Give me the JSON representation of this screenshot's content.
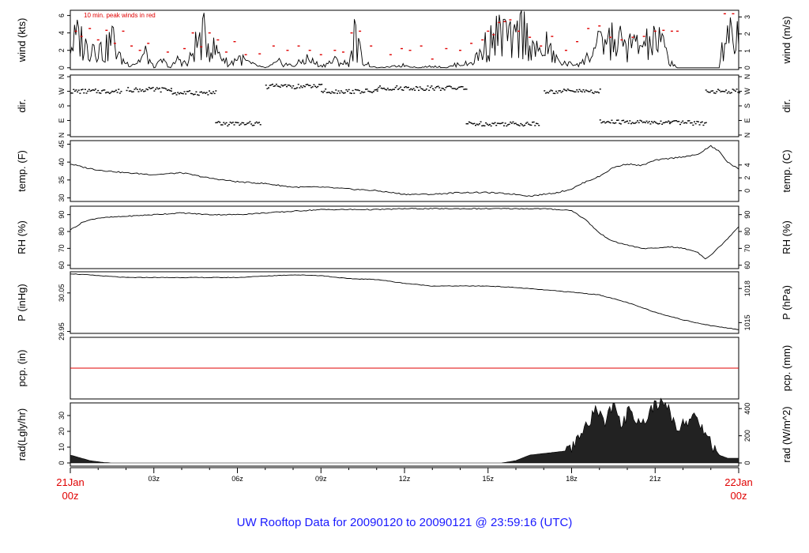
{
  "title": "UW Rooftop Data for 20090120  to  20090121 @ 23:59:16  (UTC)",
  "wind_note": "10 min. peak winds in red",
  "x_axis": {
    "range_hours": [
      0,
      24
    ],
    "major_ticks": [
      3,
      6,
      9,
      12,
      15,
      18,
      21
    ],
    "major_labels": [
      "03z",
      "06z",
      "09z",
      "12z",
      "15z",
      "18z",
      "21z"
    ],
    "start_label": [
      "21Jan",
      "00z"
    ],
    "end_label": [
      "22Jan",
      "00z"
    ]
  },
  "colors": {
    "line": "#000000",
    "peak": "#e00000",
    "title": "#1a1aff",
    "axis_end": "#e00000",
    "precip": "#e00000"
  },
  "chart_data": [
    {
      "type": "line",
      "panel": "wind",
      "ylabel": "wind (kts)",
      "ylabel_right": "wind (m/s)",
      "ylim": [
        -0.2,
        6.6
      ],
      "ticks": [
        0,
        2,
        4,
        6
      ],
      "tick_labels": [
        "0",
        "2",
        "4",
        "6"
      ],
      "right_ticks": [
        0,
        1,
        2,
        3
      ],
      "right_tick_labels": [
        "0",
        "1",
        "2",
        "3"
      ],
      "x": [
        0,
        0.3,
        0.6,
        0.9,
        1.2,
        1.5,
        1.8,
        2.1,
        2.4,
        2.7,
        3.0,
        3.3,
        3.6,
        3.9,
        4.2,
        4.5,
        4.8,
        5.1,
        5.4,
        5.7,
        6.0,
        6.5,
        7.0,
        7.5,
        8.0,
        8.5,
        9.0,
        9.5,
        10.0,
        10.2,
        10.5,
        10.8,
        11.0,
        11.5,
        12.0,
        12.5,
        13.0,
        13.5,
        14.0,
        14.3,
        14.6,
        15.0,
        15.3,
        15.6,
        15.9,
        16.2,
        16.5,
        16.8,
        17.1,
        17.4,
        17.7,
        18.0,
        18.4,
        18.8,
        19.2,
        19.6,
        20.0,
        20.4,
        20.8,
        21.2,
        21.5,
        21.8,
        22.2,
        22.6,
        23.0,
        23.3,
        23.6,
        23.9
      ],
      "y": [
        2.5,
        3.5,
        2.2,
        3.0,
        1.5,
        3.4,
        1.0,
        0.4,
        0.6,
        1.6,
        0,
        0.8,
        0,
        1.1,
        0.3,
        2.5,
        3.5,
        2.2,
        1.5,
        0.3,
        1.2,
        0.4,
        0,
        0.6,
        0.2,
        1.0,
        0.2,
        0.8,
        0.4,
        3.5,
        0.8,
        0.2,
        0,
        0.1,
        0.3,
        0,
        0.2,
        0,
        0.5,
        0.4,
        1.2,
        2.8,
        3.5,
        4.0,
        2.5,
        4.5,
        3.0,
        1.5,
        2.5,
        1.0,
        0.5,
        0.4,
        0.6,
        2.0,
        3.0,
        3.0,
        2.5,
        2.5,
        2.6,
        3.0,
        0.8,
        0,
        0,
        0,
        0,
        0,
        5.2,
        3.5
      ],
      "peak_x": [
        0.2,
        0.4,
        0.7,
        1.0,
        1.3,
        1.6,
        1.9,
        2.2,
        2.5,
        2.8,
        3.5,
        4.1,
        4.4,
        4.7,
        5.0,
        5.3,
        5.6,
        5.9,
        6.3,
        6.8,
        7.3,
        7.8,
        8.2,
        8.6,
        9.0,
        9.5,
        9.8,
        10.1,
        10.4,
        10.8,
        11.5,
        11.9,
        12.2,
        12.6,
        13.0,
        13.5,
        14.0,
        14.4,
        14.8,
        15.0,
        15.2,
        15.4,
        15.6,
        15.8,
        16.1,
        16.5,
        16.9,
        17.3,
        17.8,
        18.2,
        18.6,
        19.0,
        19.4,
        19.8,
        20.2,
        20.6,
        21.0,
        21.3,
        21.6,
        21.8,
        23.5,
        23.8
      ],
      "peak_y": [
        4.2,
        3.6,
        4.5,
        3.2,
        4.3,
        2.8,
        4.2,
        2.5,
        2.0,
        2.8,
        1.8,
        2.2,
        4.0,
        2.4,
        4.0,
        3.2,
        1.8,
        3.0,
        1.5,
        1.6,
        2.5,
        2.0,
        2.5,
        2.0,
        1.5,
        2.0,
        1.8,
        4.0,
        4.2,
        2.5,
        1.5,
        2.2,
        2.0,
        2.5,
        1.0,
        2.2,
        2.0,
        2.8,
        3.2,
        4.2,
        3.8,
        5.2,
        5.3,
        5.5,
        4.2,
        3.5,
        2.5,
        3.6,
        2.0,
        3.0,
        4.5,
        4.8,
        3.5,
        3.2,
        3.5,
        3.6,
        4.2,
        4.3,
        4.2,
        4.2,
        6.2,
        6.2
      ]
    },
    {
      "type": "scatter",
      "panel": "dir",
      "ylabel": "dir.",
      "ylabel_right": "dir.",
      "ylim": [
        -10,
        370
      ],
      "ticks": [
        0,
        90,
        180,
        270,
        360
      ],
      "tick_labels": [
        "N",
        "E",
        "S",
        "W",
        "N"
      ],
      "segments": [
        {
          "x": [
            0.0,
            1.8
          ],
          "y": 270
        },
        {
          "x": [
            2.0,
            3.6
          ],
          "y": 280
        },
        {
          "x": [
            3.6,
            5.2
          ],
          "y": 260
        },
        {
          "x": [
            5.2,
            6.8
          ],
          "y": 70
        },
        {
          "x": [
            7.0,
            9.0
          ],
          "y": 300
        },
        {
          "x": [
            9.0,
            11.0
          ],
          "y": 270
        },
        {
          "x": [
            11.0,
            14.2
          ],
          "y": 290
        },
        {
          "x": [
            14.2,
            16.8
          ],
          "y": 70
        },
        {
          "x": [
            17.0,
            19.0
          ],
          "y": 270
        },
        {
          "x": [
            19.0,
            21.5
          ],
          "y": 80
        },
        {
          "x": [
            21.5,
            22.8
          ],
          "y": 75
        },
        {
          "x": [
            22.8,
            24.0
          ],
          "y": 270
        }
      ]
    },
    {
      "type": "line",
      "panel": "temp",
      "ylabel": "temp. (F)",
      "ylabel_right": "temp. (C)",
      "ylim": [
        29,
        46
      ],
      "ticks": [
        30,
        35,
        40,
        45
      ],
      "tick_labels": [
        "30",
        "35",
        "40",
        "45"
      ],
      "right_ticks": [
        0,
        2,
        4
      ],
      "right_tick_labels": [
        "0",
        "2",
        "4"
      ],
      "x": [
        0,
        0.5,
        1,
        2,
        3,
        4,
        5,
        6,
        7,
        8,
        9,
        10,
        11,
        12,
        13,
        14,
        15,
        16,
        16.5,
        17,
        17.5,
        18,
        18.5,
        19,
        19.5,
        20,
        20.5,
        21,
        21.5,
        22,
        22.5,
        23,
        23.3,
        23.6,
        24
      ],
      "y": [
        39.5,
        38.5,
        37.8,
        37.0,
        36.5,
        37.0,
        35.5,
        34.5,
        34.0,
        33.0,
        33.0,
        32.5,
        32.0,
        31.0,
        31.0,
        31.5,
        31.5,
        31.0,
        30.5,
        31.0,
        31.5,
        32.5,
        34.5,
        36.0,
        38.5,
        39.5,
        39.0,
        40.5,
        41.0,
        41.5,
        42.0,
        44.5,
        43.0,
        40.0,
        38.0
      ]
    },
    {
      "type": "line",
      "panel": "rh",
      "ylabel": "RH (%)",
      "ylabel_right": "RH (%)",
      "ylim": [
        58,
        95
      ],
      "ticks": [
        60,
        70,
        80,
        90
      ],
      "tick_labels": [
        "60",
        "70",
        "80",
        "90"
      ],
      "x": [
        0,
        0.5,
        1,
        2,
        3,
        4,
        5,
        6,
        7,
        8,
        9,
        10,
        11,
        12,
        13,
        14,
        15,
        16,
        17,
        18,
        18.5,
        19,
        19.5,
        20,
        20.5,
        21,
        21.5,
        22,
        22.5,
        22.8,
        23,
        23.5,
        24
      ],
      "y": [
        81,
        86,
        88,
        89,
        90,
        91,
        90,
        90,
        91,
        92,
        93,
        93,
        93,
        93.5,
        93.5,
        93.5,
        93.5,
        93.5,
        93.5,
        92.5,
        87,
        79,
        74,
        72,
        70,
        70,
        71,
        70,
        68,
        64,
        66,
        74,
        83
      ]
    },
    {
      "type": "line",
      "panel": "pressure",
      "ylabel": "P (inHg)",
      "ylabel_right": "P (hPa)",
      "ylim": [
        29.945,
        30.105
      ],
      "ticks": [
        29.95,
        30.05
      ],
      "tick_labels": [
        "29.95",
        "30.05"
      ],
      "right_ticks": [
        1015,
        1018
      ],
      "right_tick_labels": [
        "1015",
        "1018"
      ],
      "x": [
        0,
        1,
        2,
        3,
        4,
        5,
        6,
        7,
        8,
        9,
        10,
        11,
        12,
        13,
        14,
        15,
        16,
        17,
        18,
        19,
        20,
        21,
        22,
        23,
        24
      ],
      "y": [
        30.1,
        30.095,
        30.09,
        30.09,
        30.09,
        30.09,
        30.09,
        30.094,
        30.097,
        30.095,
        30.087,
        30.085,
        30.075,
        30.068,
        30.068,
        30.068,
        30.064,
        30.058,
        30.052,
        30.045,
        30.025,
        30.0,
        29.98,
        29.965,
        29.955
      ]
    },
    {
      "type": "line",
      "panel": "precip",
      "ylabel": "pcp. (in)",
      "ylabel_right": "pcp. (mm)",
      "ylim": [
        -1,
        1
      ],
      "x": [
        0,
        24
      ],
      "y": [
        0,
        0
      ]
    },
    {
      "type": "area",
      "panel": "radiation",
      "ylabel": "rad(Lgly/hr)",
      "ylabel_right": "rad (W/m^2)",
      "ylim": [
        -2,
        38
      ],
      "ticks": [
        0,
        10,
        20,
        30
      ],
      "tick_labels": [
        "0",
        "10",
        "20",
        "30"
      ],
      "right_ticks": [
        0,
        200,
        400
      ],
      "right_tick_labels": [
        "0",
        "200",
        "400"
      ],
      "x": [
        0,
        0.3,
        0.7,
        1.2,
        1.5,
        2.0,
        15.5,
        16.0,
        16.5,
        17.0,
        17.5,
        18.0,
        18.3,
        18.6,
        18.9,
        19.2,
        19.5,
        19.8,
        20.1,
        20.4,
        20.7,
        21.0,
        21.3,
        21.5,
        21.8,
        22.0,
        22.2,
        22.4,
        22.6,
        22.8,
        23.0,
        23.3,
        23.6,
        24.0
      ],
      "y": [
        5,
        3.5,
        1.5,
        0.3,
        0,
        0,
        0,
        1.5,
        5,
        6,
        7,
        8,
        17,
        25,
        35,
        26,
        38,
        22,
        36,
        25,
        28,
        38,
        37,
        33,
        22,
        25,
        27,
        30,
        24,
        20,
        13,
        5,
        3,
        3
      ]
    }
  ]
}
